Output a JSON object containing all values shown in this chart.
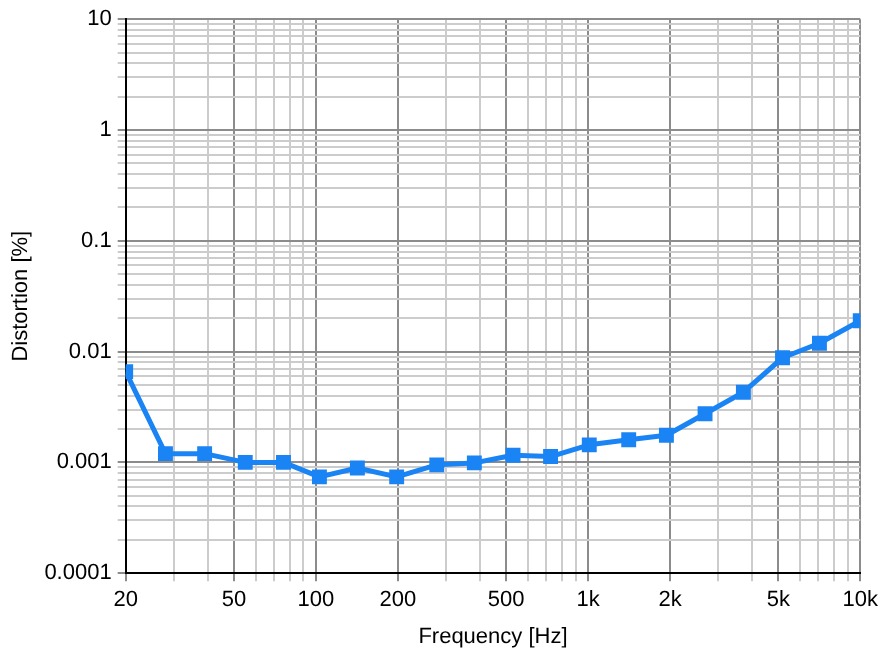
{
  "chart_data": {
    "type": "line",
    "xlabel": "Frequency [Hz]",
    "ylabel": "Distortion [%]",
    "log": "xy",
    "grid": true,
    "marker": "square",
    "line_style": "solid",
    "legend": false,
    "xlim": [
      20,
      10000
    ],
    "xticks": [
      20,
      {
        "value": 30,
        "label": null
      },
      {
        "value": 40,
        "label": null
      },
      50,
      {
        "value": 60,
        "label": null
      },
      {
        "value": 70,
        "label": null
      },
      {
        "value": 80,
        "label": null
      },
      {
        "value": 90,
        "label": null
      },
      100,
      200,
      {
        "value": 300,
        "label": null
      },
      {
        "value": 400,
        "label": null
      },
      500,
      {
        "value": 600,
        "label": null
      },
      {
        "value": 700,
        "label": null
      },
      {
        "value": 800,
        "label": null
      },
      {
        "value": 900,
        "label": null
      },
      {
        "value": 1000,
        "label": "1k"
      },
      {
        "value": 2000,
        "label": "2k"
      },
      {
        "value": 3000,
        "label": null
      },
      {
        "value": 4000,
        "label": null
      },
      {
        "value": 5000,
        "label": "5k"
      },
      {
        "value": 6000,
        "label": null
      },
      {
        "value": 7000,
        "label": null
      },
      {
        "value": 8000,
        "label": null
      },
      {
        "value": 9000,
        "label": null
      },
      {
        "value": 10000,
        "label": "10k"
      }
    ],
    "ylim": [
      0.0001,
      10
    ],
    "yticks": [
      0.0001,
      {
        "value": 0.0002,
        "label": null
      },
      {
        "value": 0.0003,
        "label": null
      },
      {
        "value": 0.0004,
        "label": null
      },
      {
        "value": 0.0005,
        "label": null
      },
      {
        "value": 0.0006,
        "label": null
      },
      {
        "value": 0.0007,
        "label": null
      },
      {
        "value": 0.0008,
        "label": null
      },
      {
        "value": 0.0009,
        "label": null
      },
      0.001,
      {
        "value": 0.002,
        "label": null
      },
      {
        "value": 0.003,
        "label": null
      },
      {
        "value": 0.004,
        "label": null
      },
      {
        "value": 0.005,
        "label": null
      },
      {
        "value": 0.006,
        "label": null
      },
      {
        "value": 0.007,
        "label": null
      },
      {
        "value": 0.008,
        "label": null
      },
      {
        "value": 0.009,
        "label": null
      },
      0.01,
      {
        "value": 0.02,
        "label": null
      },
      {
        "value": 0.03,
        "label": null
      },
      {
        "value": 0.04,
        "label": null
      },
      {
        "value": 0.05,
        "label": null
      },
      {
        "value": 0.06,
        "label": null
      },
      {
        "value": 0.07,
        "label": null
      },
      {
        "value": 0.08,
        "label": null
      },
      {
        "value": 0.09,
        "label": null
      },
      0.1,
      {
        "value": 0.2,
        "label": null
      },
      {
        "value": 0.3,
        "label": null
      },
      {
        "value": 0.4,
        "label": null
      },
      {
        "value": 0.5,
        "label": null
      },
      {
        "value": 0.6,
        "label": null
      },
      {
        "value": 0.7,
        "label": null
      },
      {
        "value": 0.8,
        "label": null
      },
      {
        "value": 0.9,
        "label": null
      },
      1,
      {
        "value": 2,
        "label": null
      },
      {
        "value": 3,
        "label": null
      },
      {
        "value": 4,
        "label": null
      },
      {
        "value": 5,
        "label": null
      },
      {
        "value": 6,
        "label": null
      },
      {
        "value": 7,
        "label": null
      },
      {
        "value": 8,
        "label": null
      },
      {
        "value": 9,
        "label": null
      },
      10
    ],
    "series": [
      {
        "color": "#1a84f5",
        "x": [
          20,
          28,
          39,
          55,
          76,
          103,
          142,
          198,
          278,
          382,
          530,
          728,
          1010,
          1410,
          1940,
          2690,
          3720,
          5180,
          7080,
          10000
        ],
        "values": [
          0.0066,
          0.0012,
          0.0012,
          0.001,
          0.001,
          0.00074,
          0.00089,
          0.00074,
          0.00095,
          0.00099,
          0.00116,
          0.00113,
          0.00144,
          0.0016,
          0.00176,
          0.00275,
          0.0043,
          0.0088,
          0.0119,
          0.019
        ]
      }
    ]
  }
}
